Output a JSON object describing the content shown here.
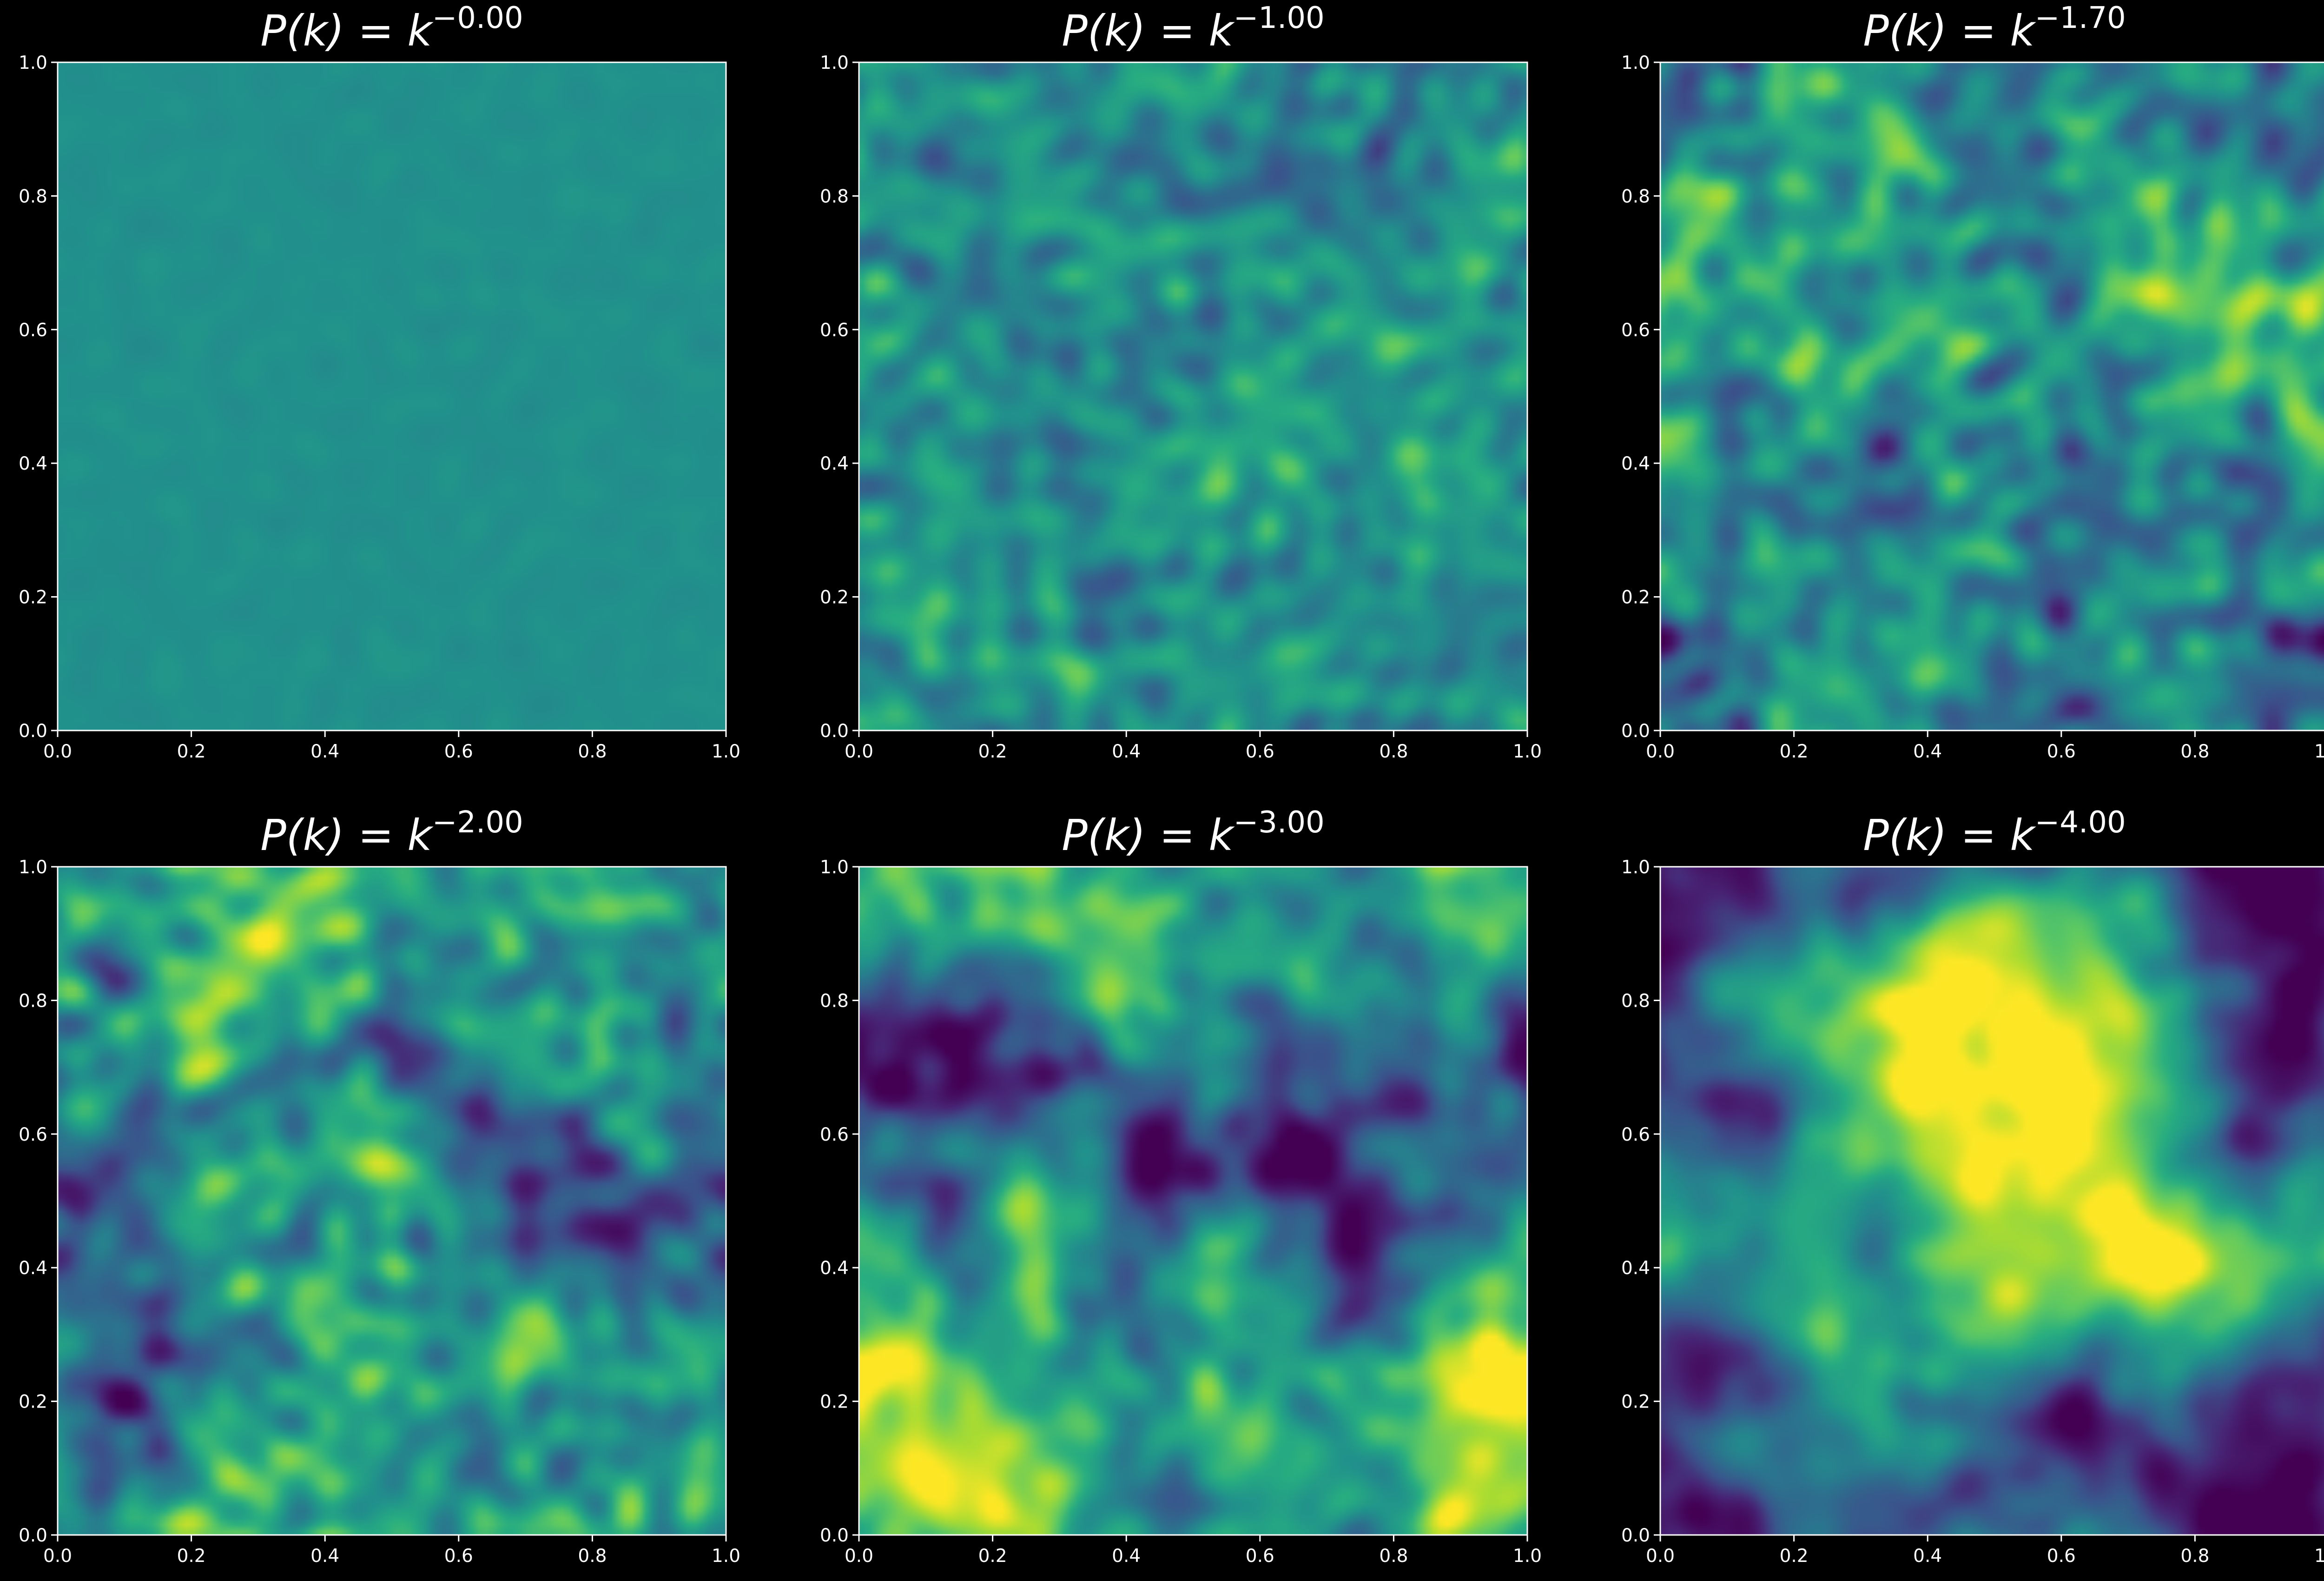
{
  "figure": {
    "background": "#000000",
    "axis_color": "#ffffff",
    "colormap": "viridis"
  },
  "chart_data": [
    {
      "type": "heatmap",
      "title_base": "P(k) = k",
      "exponent": "−0.00",
      "power": 0.0,
      "xlim": [
        0,
        1
      ],
      "ylim": [
        0,
        1
      ],
      "ticks": [
        "0.0",
        "0.2",
        "0.4",
        "0.6",
        "0.8",
        "1.0"
      ],
      "grid": false,
      "legend": "none",
      "seed": 11
    },
    {
      "type": "heatmap",
      "title_base": "P(k) = k",
      "exponent": "−1.00",
      "power": 1.0,
      "xlim": [
        0,
        1
      ],
      "ylim": [
        0,
        1
      ],
      "ticks": [
        "0.0",
        "0.2",
        "0.4",
        "0.6",
        "0.8",
        "1.0"
      ],
      "grid": false,
      "legend": "none",
      "seed": 23
    },
    {
      "type": "heatmap",
      "title_base": "P(k) = k",
      "exponent": "−1.70",
      "power": 1.7,
      "xlim": [
        0,
        1
      ],
      "ylim": [
        0,
        1
      ],
      "ticks": [
        "0.0",
        "0.2",
        "0.4",
        "0.6",
        "0.8",
        "1.0"
      ],
      "grid": false,
      "legend": "none",
      "seed": 37
    },
    {
      "type": "heatmap",
      "title_base": "P(k) = k",
      "exponent": "−2.00",
      "power": 2.0,
      "xlim": [
        0,
        1
      ],
      "ylim": [
        0,
        1
      ],
      "ticks": [
        "0.0",
        "0.2",
        "0.4",
        "0.6",
        "0.8",
        "1.0"
      ],
      "grid": false,
      "legend": "none",
      "seed": 41
    },
    {
      "type": "heatmap",
      "title_base": "P(k) = k",
      "exponent": "−3.00",
      "power": 3.0,
      "xlim": [
        0,
        1
      ],
      "ylim": [
        0,
        1
      ],
      "ticks": [
        "0.0",
        "0.2",
        "0.4",
        "0.6",
        "0.8",
        "1.0"
      ],
      "grid": false,
      "legend": "none",
      "seed": 53
    },
    {
      "type": "heatmap",
      "title_base": "P(k) = k",
      "exponent": "−4.00",
      "power": 4.0,
      "xlim": [
        0,
        1
      ],
      "ylim": [
        0,
        1
      ],
      "ticks": [
        "0.0",
        "0.2",
        "0.4",
        "0.6",
        "0.8",
        "1.0"
      ],
      "grid": false,
      "legend": "none",
      "seed": 67
    }
  ]
}
